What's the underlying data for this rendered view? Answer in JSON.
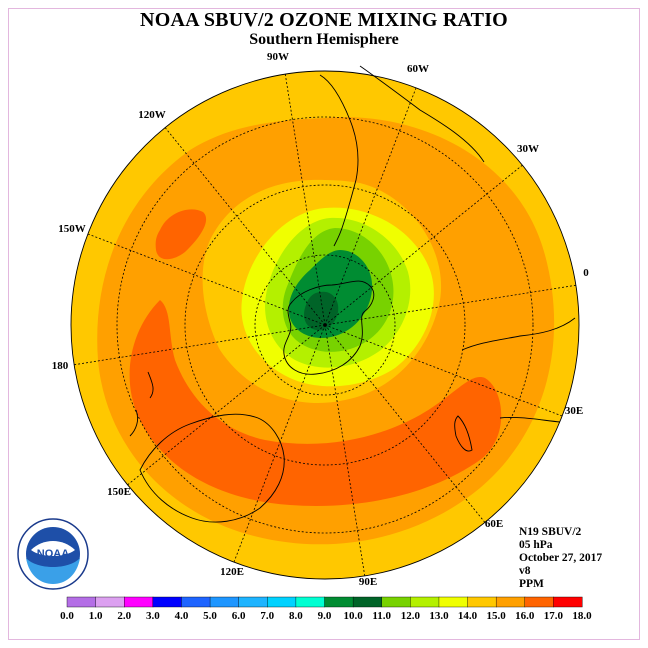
{
  "title": "NOAA SBUV/2 OZONE MIXING RATIO",
  "subtitle": "Southern Hemisphere",
  "longitude_labels": [
    "90W",
    "60W",
    "30W",
    "0",
    "30E",
    "60E",
    "90E",
    "120E",
    "150E",
    "180",
    "150W",
    "120W"
  ],
  "info": {
    "satellite": "N19 SBUV/2",
    "level": "05 hPa",
    "date": "October 27, 2017",
    "version": "v8",
    "units": "PPM"
  },
  "logo": {
    "text": "NOAA",
    "ring_text": "NATIONAL OCEANIC AND ATMOSPHERIC ADMINISTRATION · U.S. DEPARTMENT OF COMMERCE"
  },
  "colorbar": {
    "ticks": [
      "0.0",
      "1.0",
      "2.0",
      "3.0",
      "4.0",
      "5.0",
      "6.0",
      "7.0",
      "8.0",
      "9.0",
      "10.0",
      "11.0",
      "12.0",
      "13.0",
      "14.0",
      "15.0",
      "16.0",
      "17.0",
      "18.0"
    ],
    "colors": [
      "#b46ee6",
      "#dca0f0",
      "#ff00ff",
      "#0000ff",
      "#1e64ff",
      "#1e96ff",
      "#1eb4ff",
      "#00d2ff",
      "#00ffd2",
      "#008c32",
      "#006428",
      "#78d200",
      "#b4f000",
      "#f0ff00",
      "#ffc800",
      "#ffa000",
      "#ff6400",
      "#ff0000",
      "#8c4628"
    ]
  },
  "field_colors": {
    "c13": "#ffc800",
    "c14": "#ffa000",
    "c15": "#ff6400",
    "c12": "#f0ff00",
    "c11": "#b4f000",
    "c10": "#78d200",
    "c9": "#008c32",
    "c8": "#006428"
  }
}
